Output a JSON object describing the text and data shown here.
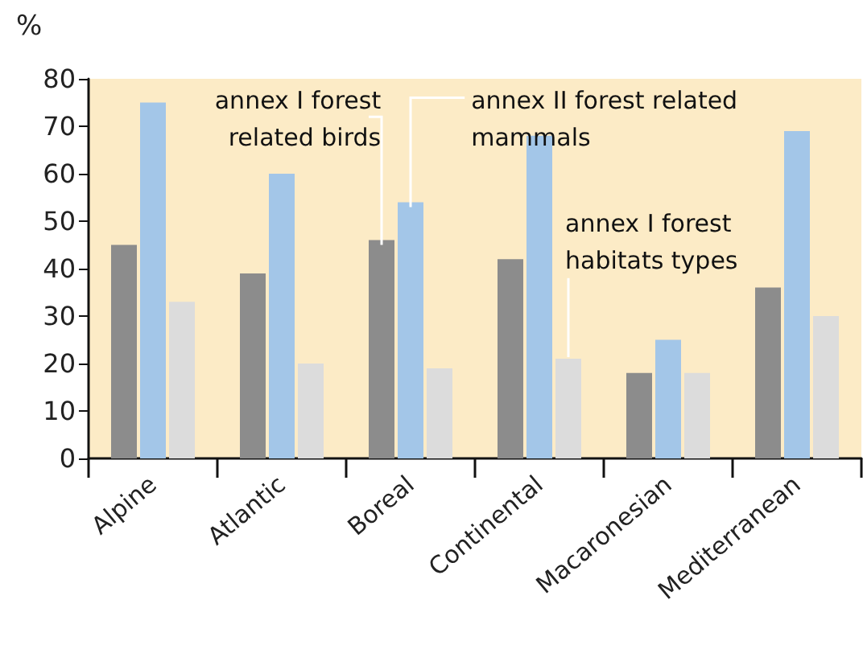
{
  "chart_data": {
    "type": "bar",
    "ylabel": "%",
    "categories": [
      "Alpine",
      "Atlantic",
      "Boreal",
      "Continental",
      "Macaronesian",
      "Mediterranean"
    ],
    "series": [
      {
        "name": "annex I forest related birds",
        "color": "#8c8c8c",
        "values": [
          45,
          39,
          46,
          42,
          18,
          36
        ]
      },
      {
        "name": "annex II forest related mammals",
        "color": "#a3c6e8",
        "values": [
          75,
          60,
          54,
          68,
          25,
          69
        ]
      },
      {
        "name": "annex I forest habitats types",
        "color": "#dcdcdc",
        "values": [
          33,
          20,
          19,
          21,
          18,
          30
        ]
      }
    ],
    "ylim": [
      0,
      80
    ],
    "yticks": [
      0,
      10,
      20,
      30,
      40,
      50,
      60,
      70,
      80
    ],
    "grid": false,
    "legend": false
  }
}
